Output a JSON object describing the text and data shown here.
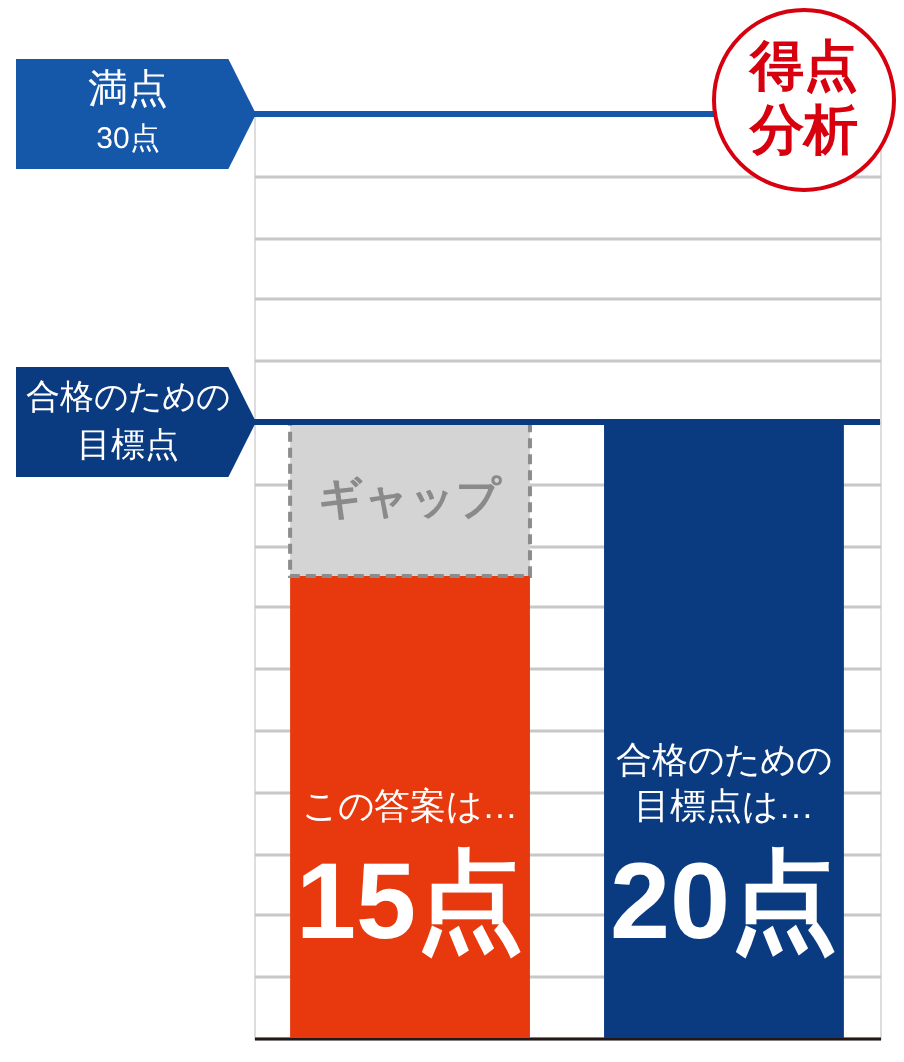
{
  "chart_data": {
    "type": "bar",
    "stacked": true,
    "categories": [
      "この答案は…",
      "合格のための目標点は…"
    ],
    "series": [
      {
        "colors": [
          "#e8380d",
          "#0a3b80"
        ],
        "values": [
          15,
          20
        ],
        "value_labels": [
          "15点",
          "20点"
        ]
      },
      {
        "name": "ギャップ",
        "color": "#d4d4d4",
        "values": [
          5,
          null
        ],
        "line_style": "dashed"
      }
    ],
    "ylim": [
      0,
      30
    ],
    "yticks": [
      0,
      2,
      4,
      6,
      8,
      10,
      12,
      14,
      16,
      18,
      20,
      22,
      24,
      26,
      28,
      30
    ],
    "grid": "y",
    "tick_labels": false,
    "ref_lines": [
      {
        "axis": "y",
        "value": 30,
        "label": "満点",
        "color": "#1557a8"
      },
      {
        "axis": "y",
        "value": 20,
        "label": "合格のための目標点",
        "color": "#0a3b80"
      }
    ],
    "annotations": [
      "30点",
      "得点分析"
    ]
  }
}
